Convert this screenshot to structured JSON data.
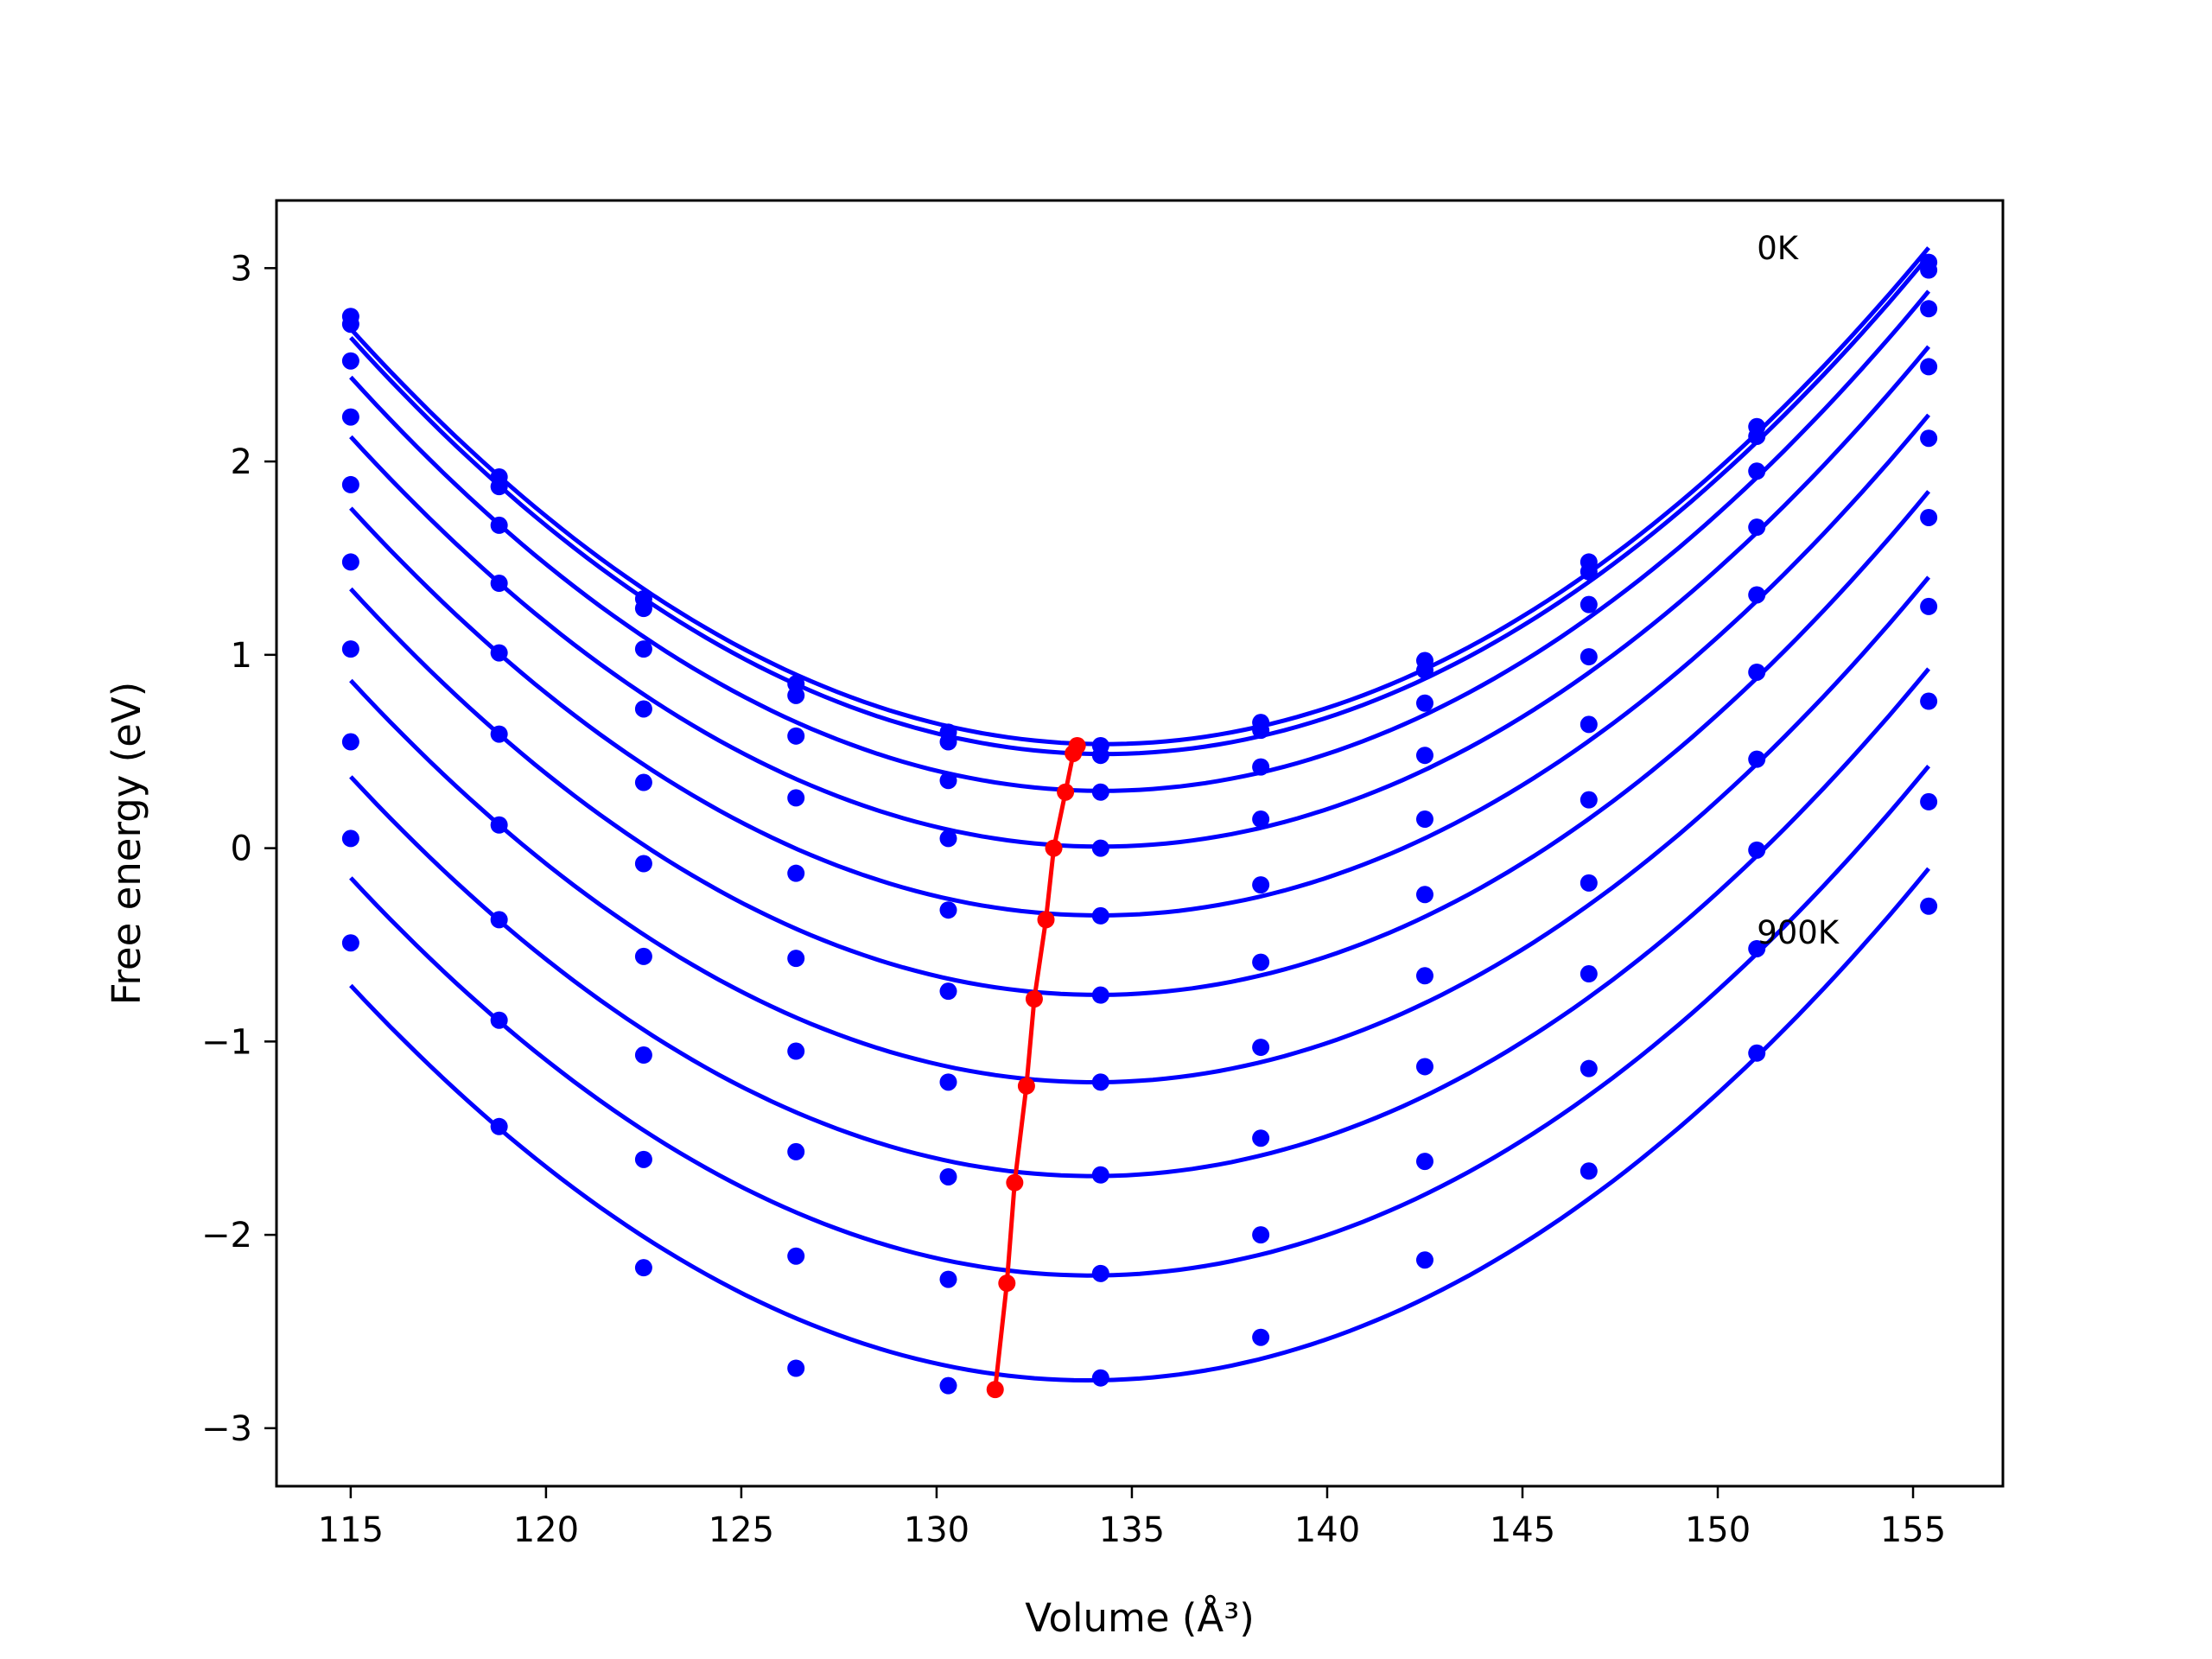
{
  "chart_data": {
    "type": "line",
    "title": "",
    "xlabel": "Volume (Å³)",
    "ylabel": "Free energy (eV)",
    "xlim": [
      113.1,
      157.3
    ],
    "ylim": [
      -3.3,
      3.35
    ],
    "xticks": [
      115,
      120,
      125,
      130,
      135,
      140,
      145,
      150,
      155
    ],
    "xtick_labels": [
      "115",
      "120",
      "125",
      "130",
      "135",
      "140",
      "145",
      "150",
      "155"
    ],
    "yticks": [
      3,
      2,
      1,
      0,
      -1,
      -2,
      -3
    ],
    "ytick_labels": [
      "3",
      "2",
      "1",
      "0",
      "−1",
      "−2",
      "−3"
    ],
    "grid": false,
    "legend": null,
    "colors": {
      "fit": "#0000ff",
      "points": "#0000ff",
      "minima": "#ff0000"
    },
    "annotations": [
      {
        "text": "0K",
        "x": 151.0,
        "y": 3.1
      },
      {
        "text": "900K",
        "x": 151.0,
        "y": -0.44
      }
    ],
    "volumes": [
      115.0,
      118.8,
      122.5,
      126.4,
      130.3,
      134.2,
      138.3,
      142.5,
      146.7,
      151.0,
      155.4
    ],
    "series": [
      {
        "values": [
          2.75,
          1.92,
          1.29,
          0.85,
          0.6,
          0.53,
          0.65,
          0.97,
          1.48,
          2.18,
          3.03
        ],
        "min_x": 133.6,
        "min_y": 0.53
      },
      {
        "values": [
          2.71,
          1.87,
          1.24,
          0.79,
          0.55,
          0.48,
          0.61,
          0.92,
          1.43,
          2.13,
          2.99
        ],
        "min_x": 133.5,
        "min_y": 0.49
      },
      {
        "values": [
          2.52,
          1.67,
          1.03,
          0.58,
          0.35,
          0.29,
          0.42,
          0.75,
          1.26,
          1.95,
          2.79
        ],
        "min_x": 133.3,
        "min_y": 0.29
      },
      {
        "values": [
          2.23,
          1.37,
          0.72,
          0.26,
          0.05,
          0.0,
          0.15,
          0.48,
          0.99,
          1.66,
          2.49
        ],
        "min_x": 133.0,
        "min_y": 0.0
      },
      {
        "values": [
          1.88,
          1.01,
          0.34,
          -0.13,
          -0.32,
          -0.35,
          -0.19,
          0.15,
          0.64,
          1.31,
          2.12
        ],
        "min_x": 132.8,
        "min_y": -0.37
      },
      {
        "values": [
          1.48,
          0.59,
          -0.08,
          -0.57,
          -0.74,
          -0.76,
          -0.59,
          -0.24,
          0.25,
          0.91,
          1.71
        ],
        "min_x": 132.5,
        "min_y": -0.78
      },
      {
        "values": [
          1.03,
          0.12,
          -0.56,
          -1.05,
          -1.21,
          -1.21,
          -1.03,
          -0.66,
          -0.18,
          0.46,
          1.25
        ],
        "min_x": 132.3,
        "min_y": -1.23
      },
      {
        "values": [
          0.55,
          -0.37,
          -1.07,
          -1.57,
          -1.7,
          -1.69,
          -1.5,
          -1.13,
          -0.65,
          -0.01,
          0.76
        ],
        "min_x": 132.0,
        "min_y": -1.73
      },
      {
        "values": [
          0.05,
          -0.89,
          -1.61,
          -2.11,
          -2.23,
          -2.2,
          -2.0,
          -1.62,
          -1.14,
          -0.52,
          0.24
        ],
        "min_x": 131.8,
        "min_y": -2.25
      },
      {
        "values": [
          -0.49,
          -1.44,
          -2.17,
          -2.69,
          -2.78,
          -2.74,
          -2.53,
          -2.13,
          -1.67,
          -1.06,
          -0.3
        ],
        "min_x": 131.5,
        "min_y": -2.8
      }
    ]
  }
}
